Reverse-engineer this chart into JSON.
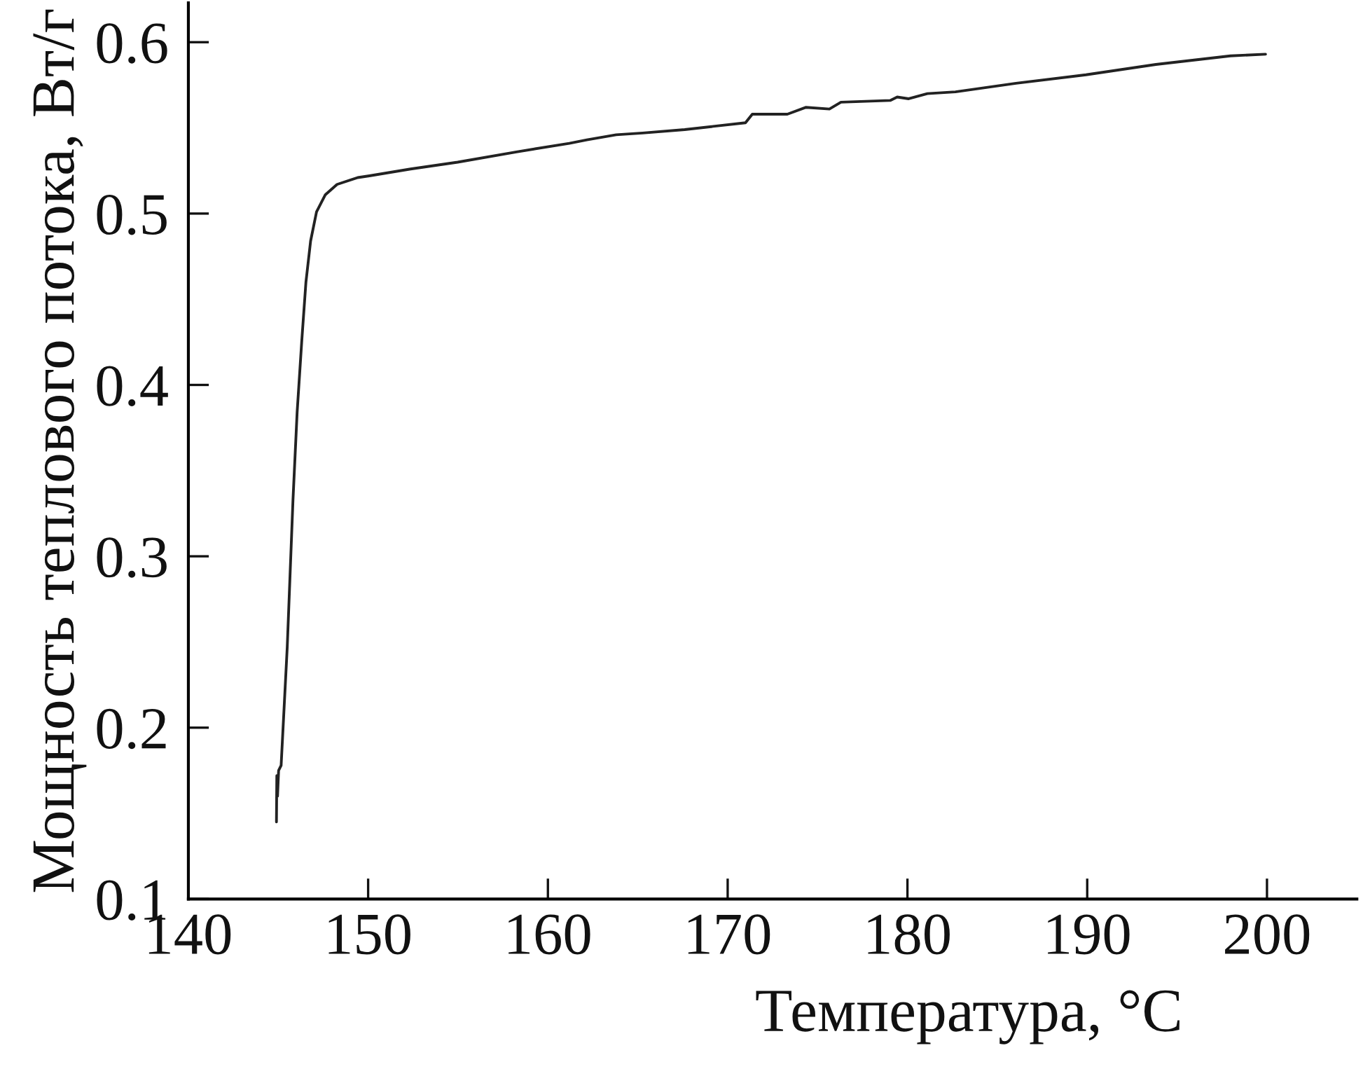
{
  "chart_data": {
    "type": "line",
    "xlabel": "Температура, °C",
    "ylabel": "Мощность теплового потока, Вт/г",
    "xlim": [
      140,
      205
    ],
    "ylim": [
      0.1,
      0.623
    ],
    "xticks": [
      140,
      150,
      160,
      170,
      180,
      190,
      200
    ],
    "yticks": [
      0.1,
      0.2,
      0.3,
      0.4,
      0.5,
      0.6
    ],
    "series": [
      {
        "color": "#222222",
        "x": [
          144.9,
          144.92,
          144.96,
          145.02,
          145.16,
          145.5,
          145.82,
          146.05,
          146.31,
          146.54,
          146.8,
          147.13,
          147.62,
          148.27,
          149.42,
          150.07,
          152.36,
          154.98,
          158.25,
          161.19,
          162.17,
          163.8,
          165.27,
          167.61,
          170.99,
          171.37,
          173.32,
          174.36,
          175.66,
          176.3,
          179.04,
          179.43,
          180.07,
          181.11,
          182.67,
          186.04,
          189.93,
          193.82,
          197.97,
          199.92
        ],
        "values": [
          0.145,
          0.172,
          0.16,
          0.175,
          0.178,
          0.247,
          0.333,
          0.384,
          0.426,
          0.46,
          0.484,
          0.501,
          0.511,
          0.517,
          0.521,
          0.522,
          0.526,
          0.53,
          0.536,
          0.541,
          0.543,
          0.546,
          0.547,
          0.549,
          0.553,
          0.558,
          0.558,
          0.562,
          0.561,
          0.565,
          0.566,
          0.568,
          0.567,
          0.57,
          0.571,
          0.576,
          0.581,
          0.587,
          0.592,
          0.593
        ]
      }
    ]
  }
}
